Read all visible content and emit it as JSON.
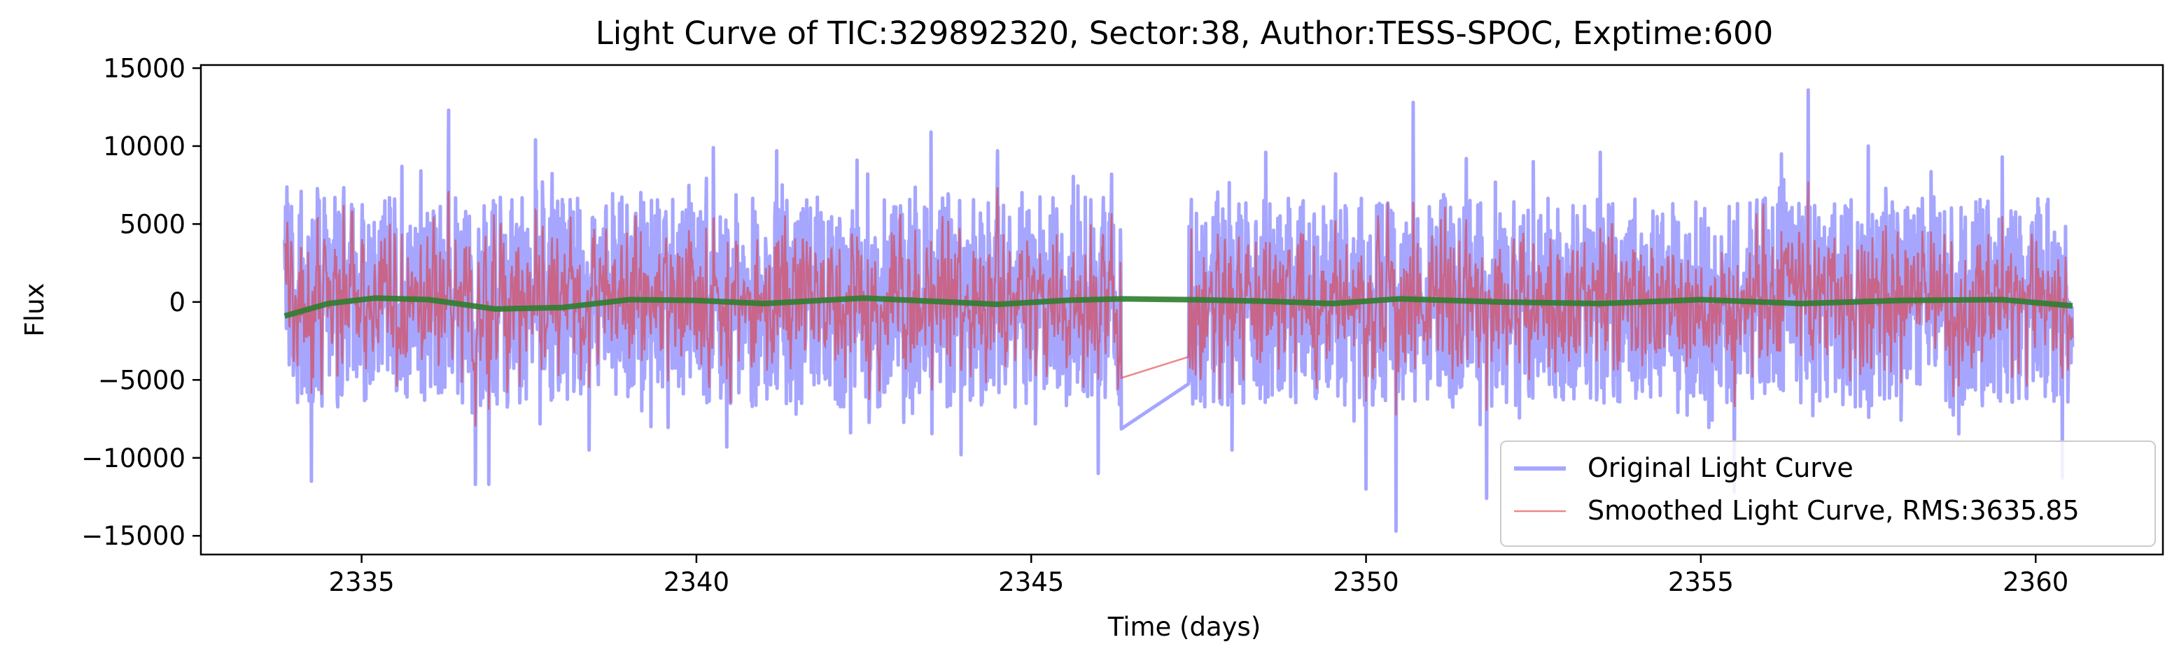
{
  "chart_data": {
    "type": "line",
    "title": "Light Curve of TIC:329892320, Sector:38, Author:TESS-SPOC, Exptime:600",
    "xlabel": "Time (days)",
    "ylabel": "Flux",
    "xlim": [
      2332.6,
      2361.9
    ],
    "ylim": [
      -16200,
      15200
    ],
    "x_ticks": [
      2335,
      2340,
      2345,
      2350,
      2355,
      2360
    ],
    "x_tick_labels": [
      "2335",
      "2340",
      "2345",
      "2350",
      "2355",
      "2360"
    ],
    "y_ticks": [
      15000,
      10000,
      5000,
      0,
      -5000,
      -10000,
      -15000
    ],
    "y_tick_labels": [
      "15000",
      "10000",
      "5000",
      "0",
      "−5000",
      "−10000",
      "−15000"
    ],
    "grid": false,
    "legend_position": "lower-right",
    "data_segments": [
      [
        2333.85,
        2346.35
      ],
      [
        2347.35,
        2360.55
      ]
    ],
    "series": [
      {
        "name": "Original Light Curve",
        "color": "#6b6bff",
        "style": "thick line, alpha 0.6",
        "envelope_high": 9000,
        "envelope_low": -9000,
        "peaks": [
          {
            "x": 2333.9,
            "y": 6300
          },
          {
            "x": 2334.1,
            "y": 7100
          },
          {
            "x": 2334.25,
            "y": -11500
          },
          {
            "x": 2334.6,
            "y": 6700
          },
          {
            "x": 2335.6,
            "y": 8700
          },
          {
            "x": 2336.3,
            "y": 12300
          },
          {
            "x": 2336.7,
            "y": -11700
          },
          {
            "x": 2336.9,
            "y": -11700
          },
          {
            "x": 2337.6,
            "y": 10400
          },
          {
            "x": 2338.4,
            "y": -9500
          },
          {
            "x": 2340.25,
            "y": 9900
          },
          {
            "x": 2340.45,
            "y": -9300
          },
          {
            "x": 2341.2,
            "y": 9700
          },
          {
            "x": 2342.4,
            "y": 9100
          },
          {
            "x": 2343.5,
            "y": 10900
          },
          {
            "x": 2343.95,
            "y": -9800
          },
          {
            "x": 2344.5,
            "y": 9700
          },
          {
            "x": 2346.0,
            "y": -11000
          },
          {
            "x": 2346.2,
            "y": 8200
          },
          {
            "x": 2348.0,
            "y": -9500
          },
          {
            "x": 2348.5,
            "y": 9600
          },
          {
            "x": 2350.0,
            "y": -12000
          },
          {
            "x": 2350.45,
            "y": -14700
          },
          {
            "x": 2350.7,
            "y": 12800
          },
          {
            "x": 2351.5,
            "y": 9200
          },
          {
            "x": 2351.8,
            "y": -12600
          },
          {
            "x": 2352.5,
            "y": 9000
          },
          {
            "x": 2353.5,
            "y": 9600
          },
          {
            "x": 2355.5,
            "y": -12200
          },
          {
            "x": 2356.2,
            "y": 9500
          },
          {
            "x": 2356.6,
            "y": 13600
          },
          {
            "x": 2357.5,
            "y": 10000
          },
          {
            "x": 2359.5,
            "y": 9300
          },
          {
            "x": 2360.4,
            "y": -11300
          }
        ]
      },
      {
        "name": "Smoothed Light Curve, RMS:3635.85",
        "color": "#e03a3a",
        "style": "thin line, alpha 0.6"
      },
      {
        "color": "#2e7d2e",
        "style": "thick trend line",
        "x": [
          2333.85,
          2334.5,
          2335.2,
          2336.0,
          2337.0,
          2338.0,
          2339.0,
          2340.0,
          2341.0,
          2342.5,
          2343.5,
          2344.5,
          2345.5,
          2346.35,
          2347.35,
          2348.5,
          2349.5,
          2350.5,
          2352.0,
          2353.5,
          2355.0,
          2356.5,
          2358.0,
          2359.5,
          2360.55
        ],
        "y": [
          -900,
          -100,
          250,
          150,
          -450,
          -350,
          150,
          100,
          -100,
          250,
          50,
          -150,
          100,
          200,
          150,
          50,
          -100,
          200,
          0,
          -100,
          150,
          -100,
          100,
          150,
          -250
        ]
      }
    ]
  }
}
